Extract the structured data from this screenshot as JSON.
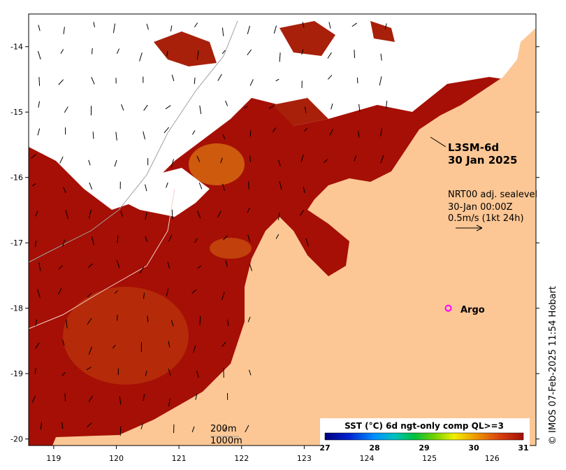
{
  "map": {
    "product": "L3SM-6d",
    "date": "30 Jan 2025",
    "current_title": "NRT00 adj. sealevel",
    "current_time": "30-Jan 00:00Z",
    "current_scale": "0.5m/s (1kt 24h)",
    "argo_label": "Argo",
    "isobath_200": "200m",
    "isobath_1000": "1000m",
    "credit": "© IMOS 07-Feb-2025 11:54 Hobart",
    "colorbar": {
      "title": "SST (°C) 6d ngt-only comp QL>=3",
      "ticks": [
        "27",
        "28",
        "29",
        "30",
        "31"
      ],
      "range": [
        27,
        31
      ]
    },
    "x_ticks": [
      "119",
      "120",
      "121",
      "122",
      "123",
      "124",
      "125",
      "126"
    ],
    "y_ticks": [
      "-14",
      "-15",
      "-16",
      "-17",
      "-18",
      "-19",
      "-20"
    ],
    "colors": {
      "sea_warm": "#a50f05",
      "land": "#fcc795",
      "cloud": "#ffffff",
      "argo": "#ff00ff"
    }
  },
  "chart_data": {
    "type": "heatmap",
    "title": "L3SM-6d 30 Jan 2025",
    "colorbar_label": "SST (°C) 6d ngt-only comp QL>=3",
    "value_range": [
      27,
      31
    ],
    "x_range": [
      118.6,
      126.7
    ],
    "y_range": [
      -20.1,
      -13.5
    ],
    "x_ticks": [
      119,
      120,
      121,
      122,
      123,
      124,
      125,
      126
    ],
    "y_ticks": [
      -14,
      -15,
      -16,
      -17,
      -18,
      -19,
      -20
    ],
    "argo_float": {
      "lon": 125.3,
      "lat": -18.0
    }
  }
}
